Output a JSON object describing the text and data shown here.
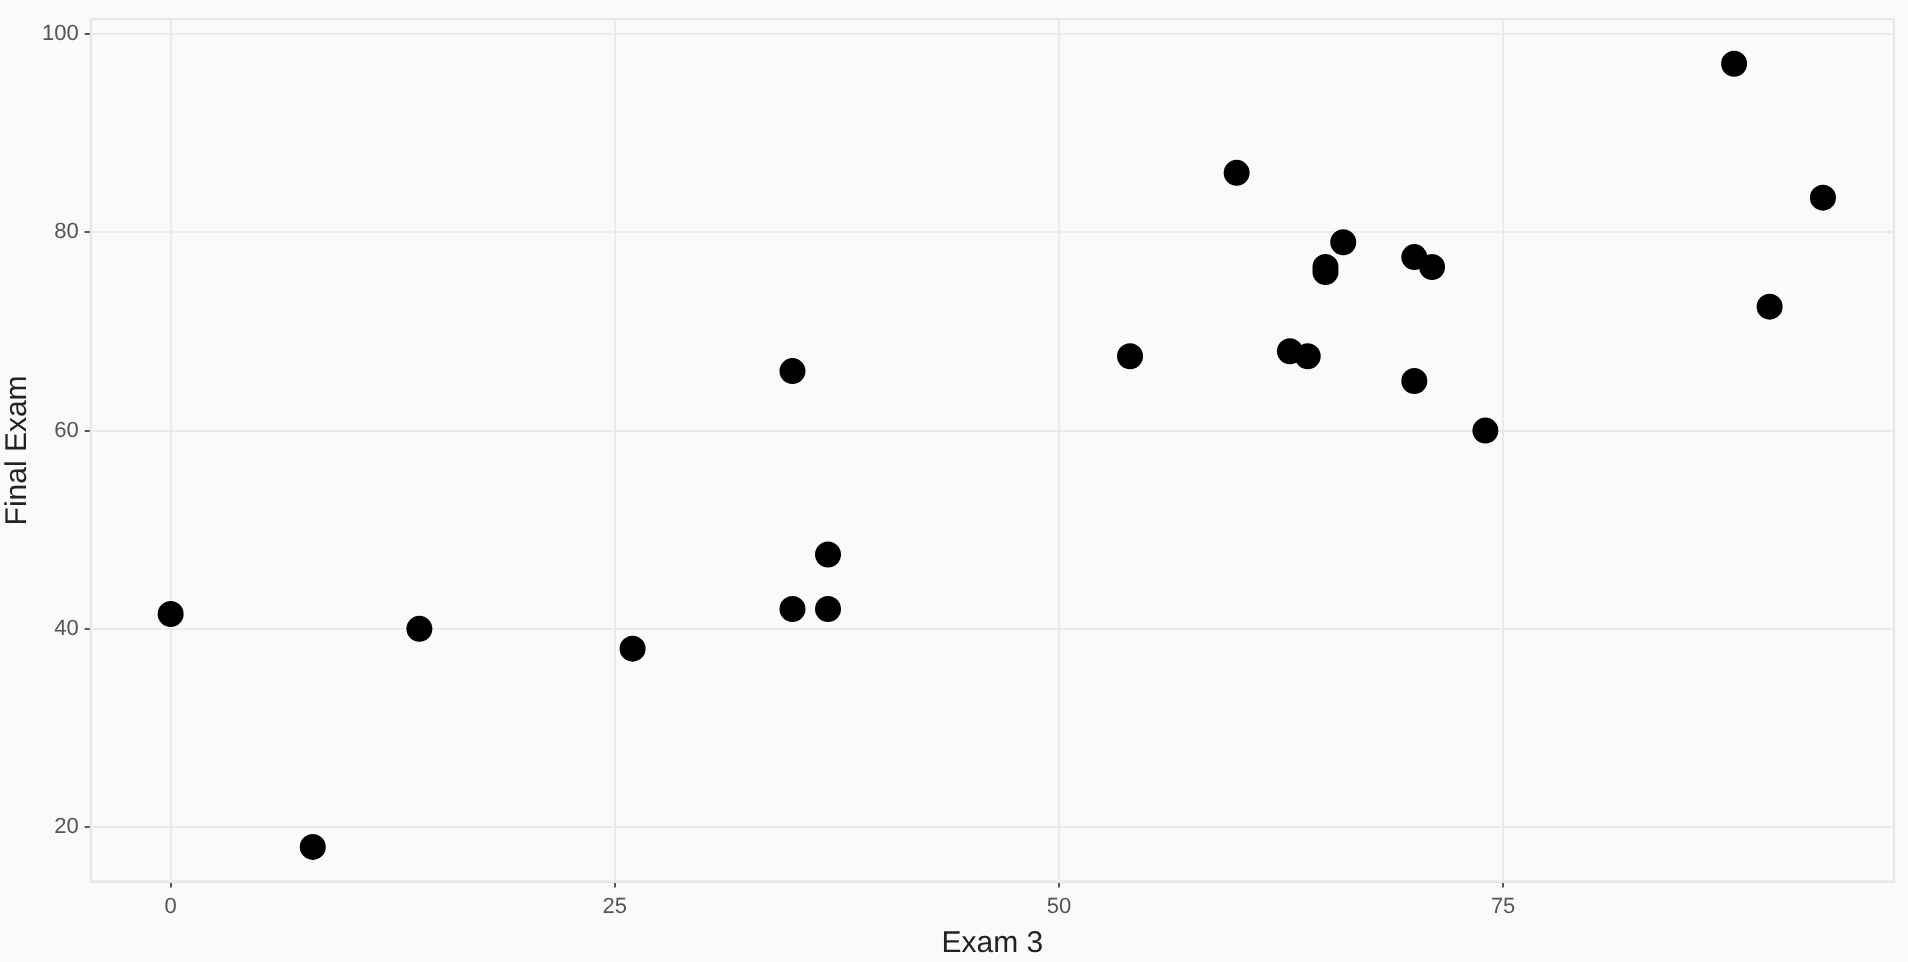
{
  "chart_data": {
    "type": "scatter",
    "xlabel": "Exam 3",
    "ylabel": "Final Exam",
    "x": [
      0,
      8,
      14,
      26,
      35,
      35,
      37,
      37,
      54,
      60,
      63,
      64,
      65,
      65,
      66,
      70,
      71,
      70,
      74,
      88,
      90,
      93
    ],
    "values": [
      41.5,
      18,
      40,
      38,
      66,
      42,
      47.5,
      42,
      67.5,
      86,
      68,
      67.5,
      76.5,
      76,
      79,
      77.5,
      76.5,
      65,
      60,
      97,
      72.5,
      83.5
    ],
    "color": "#000000",
    "marker": "circle",
    "xlim": [
      -4.5,
      97
    ],
    "xticks": [
      0,
      25,
      50,
      75
    ],
    "ylim": [
      14.5,
      101.5
    ],
    "yticks": [
      20,
      40,
      60,
      80,
      100
    ],
    "grid": true,
    "legend": false
  }
}
